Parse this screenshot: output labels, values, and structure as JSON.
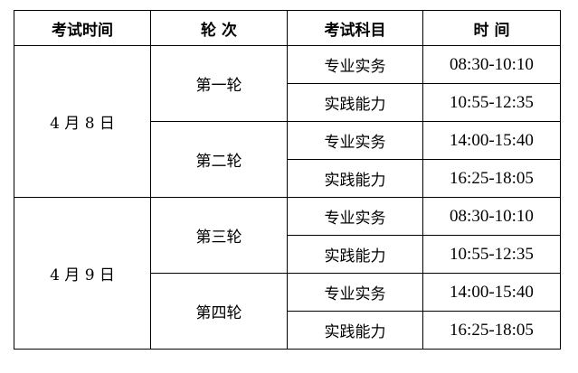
{
  "headers": [
    "考试时间",
    "轮 次",
    "考试科目",
    "时 间"
  ],
  "days": [
    {
      "date": "4 月 8 日",
      "rounds": [
        {
          "round": "第一轮",
          "sessions": [
            {
              "subject": "专业实务",
              "time": "08:30-10:10"
            },
            {
              "subject": "实践能力",
              "time": "10:55-12:35"
            }
          ]
        },
        {
          "round": "第二轮",
          "sessions": [
            {
              "subject": "专业实务",
              "time": "14:00-15:40"
            },
            {
              "subject": "实践能力",
              "time": "16:25-18:05"
            }
          ]
        }
      ]
    },
    {
      "date": "4 月 9 日",
      "rounds": [
        {
          "round": "第三轮",
          "sessions": [
            {
              "subject": "专业实务",
              "time": "08:30-10:10"
            },
            {
              "subject": "实践能力",
              "time": "10:55-12:35"
            }
          ]
        },
        {
          "round": "第四轮",
          "sessions": [
            {
              "subject": "专业实务",
              "time": "14:00-15:40"
            },
            {
              "subject": "实践能力",
              "time": "16:25-18:05"
            }
          ]
        }
      ]
    }
  ]
}
